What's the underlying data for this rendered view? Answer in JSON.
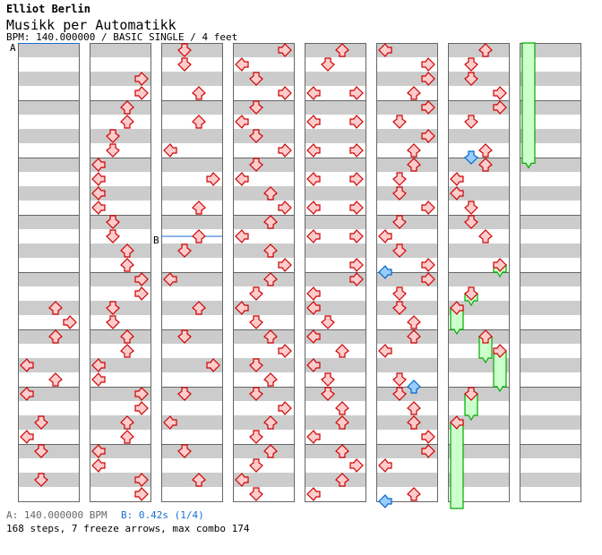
{
  "header": {
    "artist": "Elliot Berlin",
    "title": "Musikk per Automatikk",
    "info": "BPM: 140.000000 / BASIC SINGLE / 4 feet"
  },
  "markers": [
    {
      "label": "A",
      "beat": 0
    },
    {
      "label": "B",
      "beat": 77
    }
  ],
  "footer": {
    "bpm_a": "A: 140.000000 BPM",
    "stop_b": "B: 0.42s (1/4)",
    "summary": "168 steps, 7 freeze arrows, max combo 174"
  },
  "colors": {
    "quarter_fill": "#ffcccc",
    "quarter_stroke": "#cc0000",
    "eighth_fill": "#99ccff",
    "eighth_stroke": "#0066cc",
    "freeze_fill": "#ccffcc",
    "freeze_stroke": "#00aa00",
    "marker_line": "#1a6fd0"
  },
  "chart_data": {
    "type": "step-chart",
    "beats_per_measure": 4,
    "beats_per_column": 32,
    "lanes": [
      "L",
      "D",
      "U",
      "R"
    ],
    "quarter_notes_by_column": [
      "- - - - - - - - - - - - - - - - - - U R U - L U L - D L D - D -",
      "- - R R U U D D L L L L D D U U R R D D U U L L R R U U L L R R",
      "D D - U - U - L - R - U - U D - L - U - D - R - D - L - D - U -",
      "R L D R D L D R D L U R U L U R U D L D U R D U D R U D U D L D",
      "U D - LR - LR - LR - LR - LR - LR - R R L L D L U L D D U U L U R U L",
      "L R R U R D R U U D D R D L D R R D D U U L - D D U U R R L - U",
      "U D D R R D - U U L L D D U - - - - - - - - - - - - - - - - - -",
      "- - - - - - - - - - - - - - - - - - - - - - - - - - - - - - - -"
    ],
    "eighth_notes": [
      {
        "beat": 175.5,
        "lane": "L"
      },
      {
        "beat": 183.5,
        "lane": "U"
      },
      {
        "beat": 191.5,
        "lane": "L"
      },
      {
        "beat": 199.5,
        "lane": "D"
      }
    ],
    "freezes": [
      {
        "beat": 207,
        "end": 208,
        "lane": "R"
      },
      {
        "beat": 209,
        "end": 210,
        "lane": "D"
      },
      {
        "beat": 210,
        "end": 212,
        "lane": "L"
      },
      {
        "beat": 212,
        "end": 214,
        "lane": "U"
      },
      {
        "beat": 213,
        "end": 216,
        "lane": "R"
      },
      {
        "beat": 216,
        "end": 218,
        "lane": "D"
      },
      {
        "beat": 218,
        "end": 232.4,
        "lane": "L"
      }
    ]
  }
}
